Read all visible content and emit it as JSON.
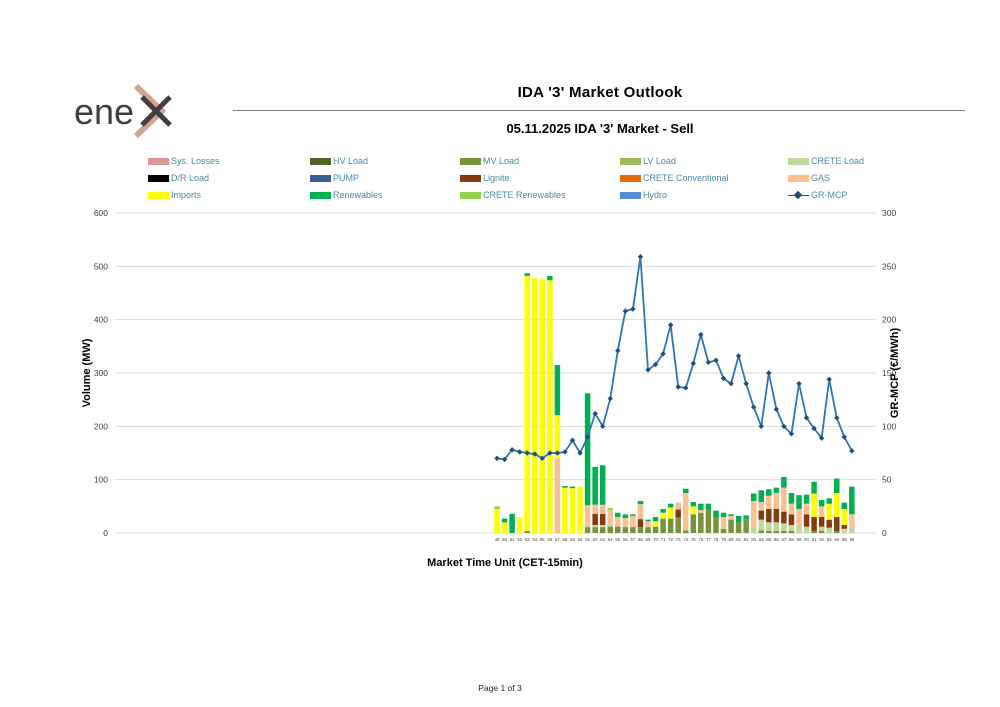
{
  "header": {
    "title": "IDA '3' Market Outlook",
    "subtitle": "05.11.2025  IDA '3' Market - Sell",
    "logo_text": "ene",
    "logo_mark": "x"
  },
  "footer": {
    "page_label": "Page 1 of 3"
  },
  "legend": {
    "items": [
      {
        "id": "sys_losses",
        "label": "Sys. Losses",
        "color": "#d99694",
        "type": "box"
      },
      {
        "id": "hv",
        "label": "HV Load",
        "color": "#4f6228",
        "type": "box"
      },
      {
        "id": "mv",
        "label": "MV Load",
        "color": "#77933c",
        "type": "box"
      },
      {
        "id": "lv",
        "label": "LV Load",
        "color": "#9bbb59",
        "type": "box"
      },
      {
        "id": "crete_load",
        "label": "CRETE Load",
        "color": "#c3d69b",
        "type": "box"
      },
      {
        "id": "dr",
        "label": "D/R Load",
        "color": "#000000",
        "type": "box"
      },
      {
        "id": "pump",
        "label": "PUMP",
        "color": "#376092",
        "type": "box"
      },
      {
        "id": "lignite",
        "label": "Lignite",
        "color": "#843c0c",
        "type": "box"
      },
      {
        "id": "crete_conv",
        "label": "CRETE Conventional",
        "color": "#e36c09",
        "type": "box"
      },
      {
        "id": "gas",
        "label": "GAS",
        "color": "#fbc092",
        "type": "box"
      },
      {
        "id": "imports",
        "label": "Imports",
        "color": "#ffff00",
        "type": "box"
      },
      {
        "id": "renewables",
        "label": "Renewables",
        "color": "#00b050",
        "type": "box"
      },
      {
        "id": "crete_ren",
        "label": "CRETE Renewables",
        "color": "#92d050",
        "type": "box"
      },
      {
        "id": "hydro",
        "label": "Hydro",
        "color": "#558ed5",
        "type": "box"
      },
      {
        "id": "gr_mcp",
        "label": "GR-MCP",
        "color": "#1f4e79",
        "type": "line"
      }
    ]
  },
  "chart_data": {
    "type": "bar",
    "subtype": "stacked-bars-with-line",
    "title": "IDA '3' Market Outlook",
    "xlabel": "Market Time Unit (CET-15min)",
    "ylabel_left": "Volume (MW)",
    "ylabel_right": "GR-MCP (€/MWh)",
    "y_left": {
      "min": 0,
      "max": 600,
      "step": 100
    },
    "y_right": {
      "min": 0,
      "max": 300,
      "step": 50
    },
    "grid": true,
    "legend_position": "top",
    "categories": [
      49,
      50,
      51,
      52,
      53,
      54,
      55,
      56,
      57,
      58,
      59,
      60,
      61,
      62,
      63,
      64,
      65,
      66,
      67,
      68,
      69,
      70,
      71,
      72,
      73,
      74,
      75,
      76,
      77,
      78,
      79,
      80,
      81,
      82,
      83,
      84,
      85,
      86,
      87,
      88,
      89,
      90,
      91,
      92,
      93,
      94,
      95,
      96
    ],
    "stack_order": [
      "mv",
      "crete_load",
      "lignite",
      "gas",
      "imports",
      "renewables",
      "crete_ren"
    ],
    "series_colors": {
      "mv": "#77933c",
      "crete_load": "#c3d69b",
      "lignite": "#843c0c",
      "gas": "#fbc092",
      "imports": "#ffff00",
      "renewables": "#00b050",
      "crete_ren": "#92d050"
    },
    "bars": [
      {
        "t": 49,
        "imports": 45,
        "crete_ren": 5
      },
      {
        "t": 50,
        "imports": 20,
        "renewables": 7
      },
      {
        "t": 51,
        "renewables": 36
      },
      {
        "t": 52,
        "imports": 30
      },
      {
        "t": 53,
        "mv": 4,
        "imports": 478,
        "renewables": 5
      },
      {
        "t": 54,
        "imports": 478
      },
      {
        "t": 55,
        "imports": 477
      },
      {
        "t": 56,
        "imports": 474,
        "renewables": 8
      },
      {
        "t": 57,
        "gas": 140,
        "imports": 81,
        "renewables": 94
      },
      {
        "t": 58,
        "imports": 85,
        "renewables": 3
      },
      {
        "t": 59,
        "imports": 84,
        "renewables": 3
      },
      {
        "t": 60,
        "imports": 87
      },
      {
        "t": 61,
        "mv": 11,
        "crete_load": 4,
        "gas": 37,
        "renewables": 210
      },
      {
        "t": 62,
        "mv": 11,
        "crete_load": 4,
        "lignite": 21,
        "gas": 17,
        "renewables": 71
      },
      {
        "t": 63,
        "mv": 11,
        "crete_load": 4,
        "lignite": 21,
        "gas": 17,
        "renewables": 74
      },
      {
        "t": 64,
        "mv": 12,
        "crete_load": 4,
        "gas": 27,
        "crete_ren": 4
      },
      {
        "t": 65,
        "mv": 12,
        "gas": 18,
        "renewables": 8
      },
      {
        "t": 66,
        "mv": 11,
        "gas": 17,
        "renewables": 7
      },
      {
        "t": 67,
        "mv": 11,
        "gas": 21,
        "renewables": 3
      },
      {
        "t": 68,
        "mv": 11,
        "lignite": 15,
        "gas": 28,
        "renewables": 6
      },
      {
        "t": 69,
        "mv": 11,
        "gas": 11,
        "renewables": 3
      },
      {
        "t": 70,
        "mv": 12,
        "imports": 10,
        "renewables": 8
      },
      {
        "t": 71,
        "mv": 27,
        "imports": 11,
        "renewables": 7
      },
      {
        "t": 72,
        "mv": 27,
        "imports": 21,
        "renewables": 7
      },
      {
        "t": 73,
        "mv": 30,
        "lignite": 14,
        "gas": 13
      },
      {
        "t": 74,
        "mv": 5,
        "gas": 70,
        "renewables": 8
      },
      {
        "t": 75,
        "mv": 35,
        "imports": 15,
        "renewables": 8
      },
      {
        "t": 76,
        "mv": 38,
        "gas": 5,
        "renewables": 12
      },
      {
        "t": 77,
        "mv": 45,
        "renewables": 10
      },
      {
        "t": 78,
        "mv": 30,
        "renewables": 12
      },
      {
        "t": 79,
        "mv": 8,
        "gas": 22,
        "renewables": 8
      },
      {
        "t": 80,
        "mv": 25,
        "gas": 7,
        "renewables": 3
      },
      {
        "t": 81,
        "mv": 20,
        "renewables": 12
      },
      {
        "t": 82,
        "mv": 25,
        "renewables": 8
      },
      {
        "t": 83,
        "crete_load": 10,
        "gas": 50,
        "renewables": 14
      },
      {
        "t": 84,
        "mv": 5,
        "crete_load": 20,
        "lignite": 17,
        "gas": 16,
        "renewables": 22
      },
      {
        "t": 85,
        "mv": 4,
        "crete_load": 16,
        "lignite": 25,
        "gas": 25,
        "renewables": 12
      },
      {
        "t": 86,
        "mv": 4,
        "crete_load": 16,
        "lignite": 25,
        "gas": 30,
        "renewables": 10
      },
      {
        "t": 87,
        "mv": 4,
        "crete_load": 14,
        "lignite": 22,
        "gas": 45,
        "renewables": 20
      },
      {
        "t": 88,
        "mv": 4,
        "crete_load": 11,
        "lignite": 20,
        "gas": 20,
        "renewables": 20
      },
      {
        "t": 89,
        "crete_load": 15,
        "gas": 30,
        "renewables": 26
      },
      {
        "t": 90,
        "crete_load": 12,
        "lignite": 23,
        "gas": 20,
        "renewables": 17
      },
      {
        "t": 91,
        "mv": 4,
        "lignite": 26,
        "imports": 44,
        "renewables": 22
      },
      {
        "t": 92,
        "mv": 4,
        "crete_load": 8,
        "lignite": 18,
        "gas": 20,
        "renewables": 12
      },
      {
        "t": 93,
        "crete_load": 10,
        "lignite": 15,
        "imports": 30,
        "renewables": 10
      },
      {
        "t": 94,
        "mv": 4,
        "lignite": 26,
        "imports": 45,
        "renewables": 27
      },
      {
        "t": 95,
        "crete_load": 8,
        "lignite": 7,
        "imports": 30,
        "renewables": 12
      },
      {
        "t": 96,
        "crete_load": 10,
        "gas": 25,
        "renewables": 52
      }
    ],
    "line": {
      "name": "GR-MCP",
      "axis": "right",
      "color": "#2e75b6",
      "marker_color": "#1f4e79",
      "values": [
        70,
        69,
        78,
        76,
        75,
        74,
        70,
        75,
        75,
        76,
        87,
        75,
        90,
        112,
        100,
        126,
        171,
        208,
        210,
        259,
        153,
        158,
        168,
        195,
        137,
        136,
        159,
        186,
        160,
        162,
        145,
        140,
        166,
        140,
        118,
        100,
        150,
        116,
        100,
        93,
        140,
        108,
        98,
        89,
        144,
        108,
        90,
        77
      ]
    }
  }
}
